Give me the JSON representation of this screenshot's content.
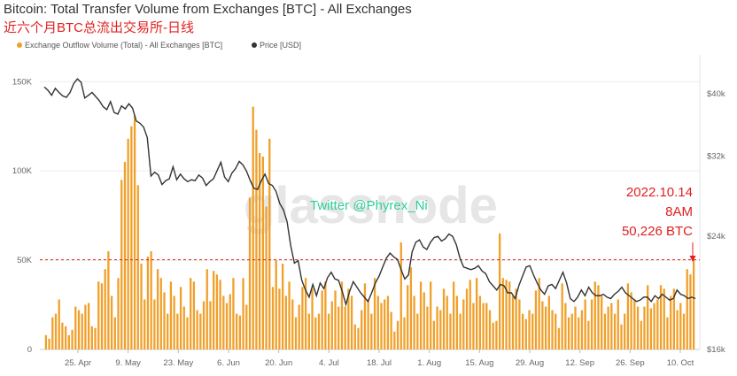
{
  "title": "Bitcoin: Total Transfer Volume from Exchanges [BTC] - All Exchanges",
  "subtitle": "近六个月BTC总流出交易所-日线",
  "watermark": "glassnode",
  "watermark_overlay": "Twitter @Phyrex_Ni",
  "annotation": {
    "lines": [
      "2022.10.14",
      "8AM",
      "50,226 BTC"
    ],
    "color": "#e02020"
  },
  "colors": {
    "bars": "#f0a02a",
    "price_line": "#333333",
    "reference_line": "#e02020"
  },
  "chart_data": {
    "type": "bar",
    "title": "Bitcoin: Total Transfer Volume from Exchanges [BTC] - All Exchanges",
    "legend_position": "top-left",
    "grid": true,
    "x_tick_labels": [
      "25. Apr",
      "9. May",
      "23. May",
      "6. Jun",
      "20. Jun",
      "4. Jul",
      "18. Jul",
      "1. Aug",
      "15. Aug",
      "29. Aug",
      "12. Sep",
      "26. Sep",
      "10. Oct"
    ],
    "y_left": {
      "ticks": [
        "0",
        "50K",
        "100K",
        "150K"
      ],
      "ylim": [
        0,
        165000
      ]
    },
    "y_right": {
      "ticks": [
        "$16k",
        "$24k",
        "$32k",
        "$40k"
      ],
      "scale": "log",
      "ylim": [
        16000,
        46000
      ]
    },
    "reference_line": {
      "value": 50226
    },
    "series": [
      {
        "name": "Exchange Outflow Volume (Total) - All Exchanges [BTC]",
        "type": "bar",
        "axis": "left",
        "values": [
          8000,
          6000,
          18000,
          20000,
          28000,
          15000,
          13000,
          8000,
          11000,
          24000,
          22000,
          20000,
          25000,
          26000,
          13000,
          12000,
          38000,
          37000,
          45000,
          55000,
          30000,
          18000,
          40000,
          95000,
          105000,
          118000,
          125000,
          131000,
          92000,
          48000,
          28000,
          52000,
          55000,
          28000,
          45000,
          40000,
          32000,
          20000,
          38000,
          30000,
          20000,
          35000,
          24000,
          18000,
          40000,
          38000,
          22000,
          20000,
          27000,
          45000,
          27000,
          44000,
          42000,
          39000,
          30000,
          26000,
          31000,
          40000,
          20000,
          19000,
          40000,
          25000,
          85000,
          136000,
          123000,
          110000,
          108000,
          80000,
          118000,
          35000,
          50000,
          34000,
          48000,
          30000,
          38000,
          28000,
          18000,
          25000,
          35000,
          40000,
          20000,
          34000,
          18000,
          20000,
          33000,
          38000,
          20000,
          27000,
          33000,
          24000,
          38000,
          24000,
          34000,
          30000,
          14000,
          12000,
          22000,
          37000,
          28000,
          20000,
          40000,
          30000,
          26000,
          28000,
          30000,
          21000,
          10000,
          16000,
          60000,
          18000,
          36000,
          46000,
          30000,
          20000,
          38000,
          32000,
          24000,
          38000,
          16000,
          24000,
          22000,
          34000,
          30000,
          20000,
          38000,
          30000,
          20000,
          28000,
          34000,
          39000,
          26000,
          40000,
          30000,
          26000,
          26000,
          22000,
          15000,
          16000,
          65000,
          40000,
          39000,
          38000,
          30000,
          34000,
          28000,
          20000,
          17000,
          22000,
          20000,
          33000,
          40000,
          27000,
          24000,
          30000,
          22000,
          20000,
          12000,
          37000,
          26000,
          18000,
          20000,
          24000,
          18000,
          22000,
          28000,
          16000,
          28000,
          38000,
          36000,
          30000,
          20000,
          24000,
          26000,
          20000,
          28000,
          14000,
          20000,
          37000,
          32000,
          28000,
          24000,
          16000,
          24000,
          36000,
          23000,
          26000,
          28000,
          36000,
          34000,
          18000,
          30000,
          34000,
          22000,
          26000,
          20000,
          45000,
          42000,
          50226
        ]
      },
      {
        "name": "Price [USD]",
        "type": "line",
        "axis": "right",
        "values": [
          41000,
          40500,
          39800,
          40800,
          40200,
          39700,
          39500,
          40200,
          41500,
          42200,
          41700,
          39400,
          39800,
          40200,
          39600,
          39000,
          38200,
          37800,
          38900,
          37400,
          37200,
          38300,
          37900,
          38600,
          38000,
          36300,
          36000,
          35500,
          34200,
          29800,
          30200,
          29900,
          28900,
          29300,
          29500,
          30800,
          29400,
          30000,
          29500,
          29200,
          29400,
          29300,
          29900,
          29600,
          28800,
          29200,
          29500,
          30400,
          31300,
          29700,
          29200,
          30100,
          30600,
          31400,
          31000,
          30300,
          29300,
          28500,
          28400,
          29300,
          30000,
          29000,
          28800,
          28200,
          27000,
          26400,
          25300,
          23200,
          21800,
          22000,
          20500,
          19800,
          19300,
          20200,
          19400,
          20300,
          19900,
          20700,
          21100,
          20600,
          20500,
          19700,
          18800,
          19700,
          20400,
          20000,
          19600,
          19300,
          19000,
          19600,
          20300,
          20800,
          21500,
          22200,
          22600,
          22300,
          22100,
          21300,
          20600,
          20900,
          22700,
          23500,
          23700,
          23100,
          22900,
          23500,
          23900,
          24000,
          23600,
          23800,
          24200,
          24000,
          23300,
          22200,
          21500,
          21400,
          21300,
          21400,
          21600,
          21200,
          21000,
          20400,
          20100,
          19800,
          20200,
          20100,
          19600,
          19600,
          19200,
          20100,
          20800,
          21500,
          21600,
          20900,
          20300,
          19800,
          19500,
          20100,
          20200,
          19900,
          20500,
          21100,
          20300,
          19200,
          19000,
          19300,
          19800,
          19400,
          20000,
          19600,
          19400,
          19400,
          19500,
          19300,
          19200,
          19500,
          19700,
          20000,
          19600,
          19400,
          19200,
          19000,
          19100,
          19300,
          19300,
          19000,
          19400,
          19200,
          19500,
          19300,
          19100,
          19200,
          19800,
          19500,
          19400,
          19200,
          19300,
          19200
        ]
      }
    ]
  },
  "legend": [
    {
      "label": "Exchange Outflow Volume (Total) - All Exchanges [BTC]",
      "color": "#f0a02a"
    },
    {
      "label": "Price [USD]",
      "color": "#333333"
    }
  ]
}
